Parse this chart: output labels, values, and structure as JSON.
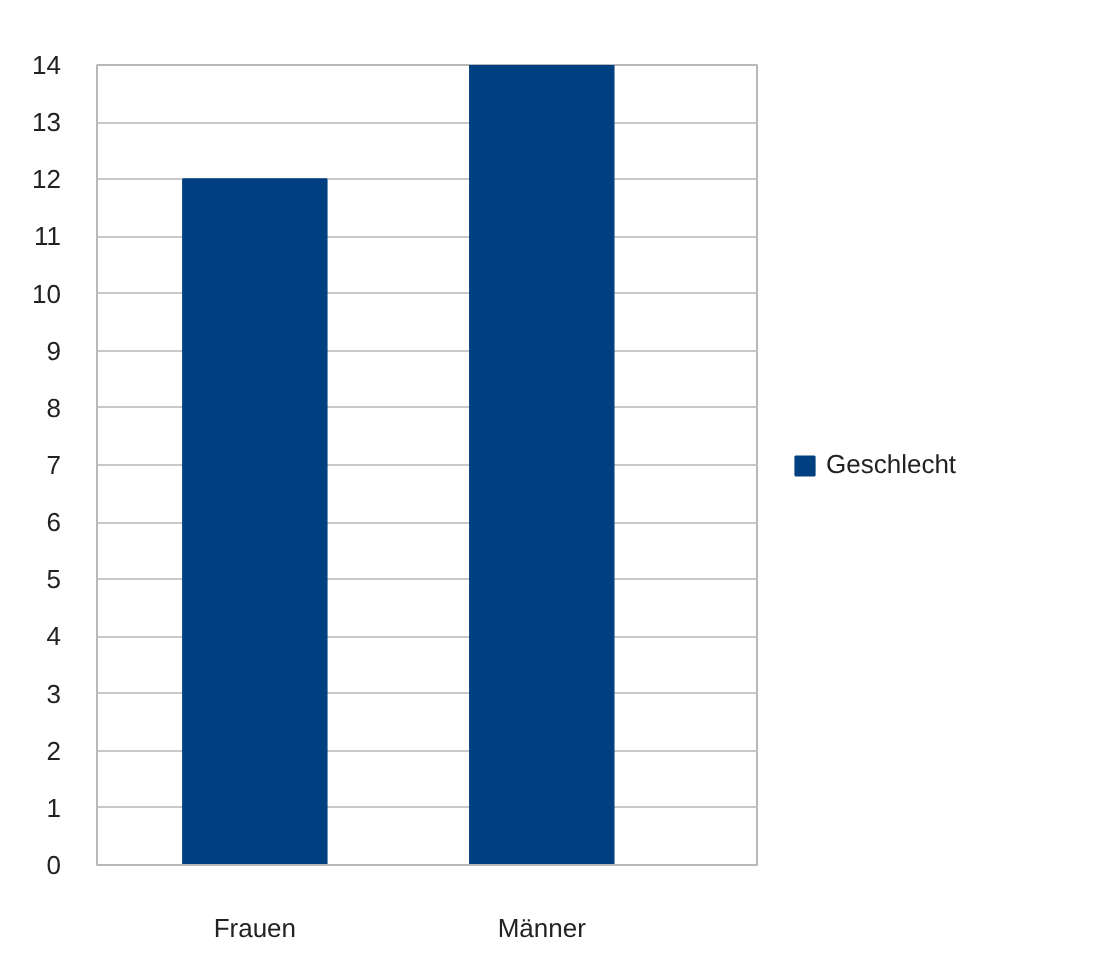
{
  "chart_data": {
    "type": "bar",
    "categories": [
      "Frauen",
      "Männer"
    ],
    "series": [
      {
        "name": "Geschlecht",
        "color": "#004080",
        "values": [
          12,
          14
        ]
      }
    ],
    "ylim": [
      0,
      14
    ],
    "yticks": [
      0,
      1,
      2,
      3,
      4,
      5,
      6,
      7,
      8,
      9,
      10,
      11,
      12,
      13,
      14
    ],
    "grid": "y",
    "legend": "right"
  }
}
